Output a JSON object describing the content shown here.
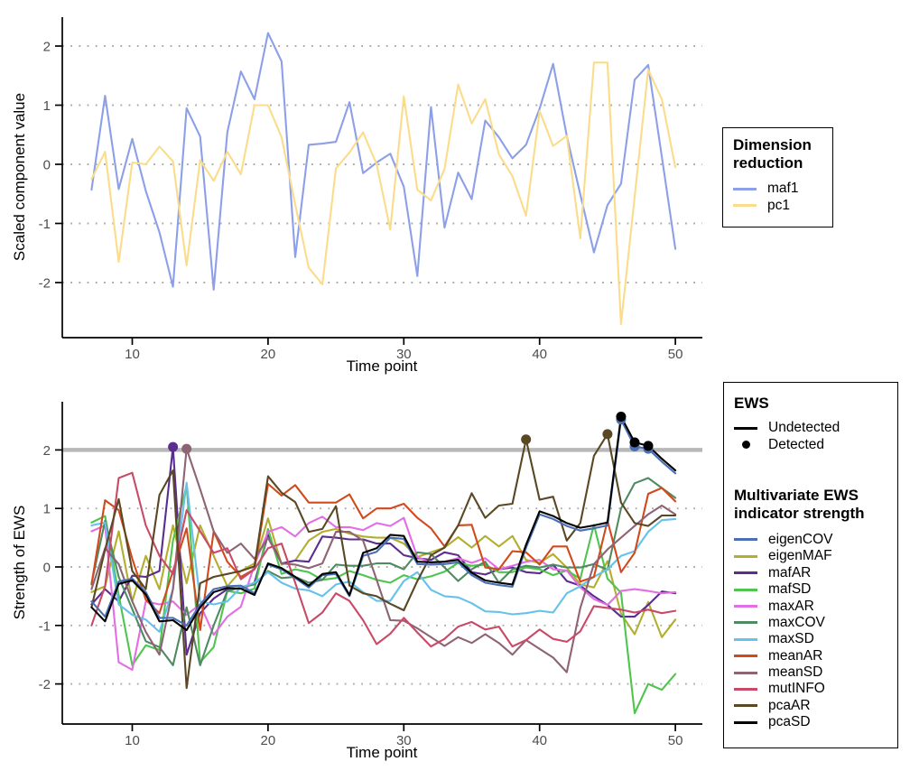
{
  "page": {
    "background": "#ffffff"
  },
  "axes": {
    "top_y_title": "Scaled component value",
    "bottom_y_title": "Strength of EWS",
    "x_title": "Time point"
  },
  "legend_dimension_reduction": {
    "title_lines": [
      "Dimension",
      "reduction"
    ],
    "items": [
      {
        "label": "maf1",
        "color": "#8c9fe8"
      },
      {
        "label": "pc1",
        "color": "#fbdc8a"
      }
    ]
  },
  "legend_ews": {
    "title": "EWS",
    "items": [
      {
        "label": "Undetected",
        "key": "line",
        "color": "#000000"
      },
      {
        "label": "Detected",
        "key": "dot",
        "color": "#000000"
      }
    ]
  },
  "legend_indicators": {
    "title_lines": [
      "Multivariate EWS",
      "indicator strength"
    ]
  },
  "chart_data": [
    {
      "id": "dimension-reduction",
      "type": "line",
      "title": "",
      "xlabel": "Time point",
      "ylabel": "Scaled component value",
      "x_start": 7,
      "x_ticks": [
        10,
        20,
        30,
        40,
        50
      ],
      "y_ticks": [
        -2,
        -1,
        0,
        1,
        2
      ],
      "ylim": [
        -2.9,
        2.45
      ],
      "grid": "dotted-horizontal",
      "legend_position": "right",
      "series": [
        {
          "name": "maf1",
          "color": "#8c9fe8",
          "values": [
            -0.43,
            1.16,
            -0.42,
            0.43,
            -0.45,
            -1.15,
            -2.07,
            0.95,
            0.47,
            -2.12,
            0.54,
            1.57,
            1.1,
            2.22,
            1.74,
            -1.57,
            0.33,
            0.35,
            0.38,
            1.05,
            -0.15,
            0.03,
            0.18,
            -0.38,
            -1.89,
            0.97,
            -1.07,
            -0.14,
            -0.59,
            0.74,
            0.46,
            0.1,
            0.33,
            0.94,
            1.7,
            0.48,
            -0.51,
            -1.49,
            -0.69,
            -0.33,
            1.43,
            1.68,
            0.13,
            -1.43
          ]
        },
        {
          "name": "pc1",
          "color": "#fbdc8a",
          "values": [
            -0.25,
            0.21,
            -1.65,
            0.03,
            0.0,
            0.3,
            0.05,
            -1.71,
            0.07,
            -0.28,
            0.21,
            -0.17,
            1.0,
            1.0,
            0.46,
            -0.68,
            -1.75,
            -2.03,
            -0.07,
            0.2,
            0.54,
            0.0,
            -1.1,
            1.15,
            -0.43,
            -0.61,
            -0.08,
            1.35,
            0.69,
            1.1,
            0.17,
            -0.2,
            -0.87,
            0.9,
            0.31,
            0.48,
            -1.25,
            1.72,
            1.72,
            -2.7,
            -0.55,
            1.6,
            1.1,
            -0.05
          ]
        }
      ]
    },
    {
      "id": "ews-strength",
      "type": "line",
      "title": "",
      "xlabel": "Time point",
      "ylabel": "Strength of EWS",
      "x_start": 7,
      "x_ticks": [
        10,
        20,
        30,
        40,
        50
      ],
      "y_ticks": [
        -2,
        -1,
        0,
        1,
        2
      ],
      "ylim": [
        -2.7,
        2.8
      ],
      "grid": "dotted-horizontal",
      "threshold": 2,
      "threshold_color": "#b8b8b8",
      "series": [
        {
          "name": "eigenCOV",
          "color": "#4a6fb5",
          "values": [
            -0.59,
            -0.85,
            -0.25,
            -0.2,
            -0.43,
            -0.87,
            -0.87,
            -1.0,
            -0.64,
            -0.38,
            -0.33,
            -0.32,
            -0.45,
            0.04,
            -0.04,
            -0.19,
            -0.35,
            -0.14,
            -0.12,
            -0.5,
            0.19,
            0.26,
            0.5,
            0.48,
            0.05,
            0.04,
            0.05,
            0.08,
            -0.14,
            -0.27,
            -0.31,
            -0.34,
            0.33,
            0.9,
            0.82,
            0.7,
            0.62,
            0.66,
            0.71,
            2.52,
            2.06,
            2.02,
            1.8,
            1.6
          ]
        },
        {
          "name": "eigenMAF",
          "color": "#b3ae2e",
          "values": [
            -0.43,
            -0.33,
            0.61,
            -0.59,
            0.19,
            -0.38,
            0.71,
            -0.28,
            0.71,
            0.19,
            -0.33,
            -0.07,
            0.06,
            0.83,
            0.04,
            0.11,
            0.45,
            0.6,
            0.65,
            0.57,
            0.52,
            0.5,
            0.5,
            0.4,
            0.17,
            0.25,
            0.33,
            0.51,
            0.33,
            0.53,
            0.35,
            0.53,
            0.12,
            0.07,
            0.22,
            -0.01,
            -0.3,
            -0.35,
            0.1,
            -0.8,
            -1.15,
            -0.6,
            -1.2,
            -0.9
          ]
        },
        {
          "name": "mafAR",
          "color": "#5b2d8e",
          "values": [
            -0.64,
            -0.38,
            -0.59,
            -0.15,
            -0.17,
            -0.07,
            2.05,
            -1.5,
            -0.79,
            -0.54,
            -0.38,
            -0.37,
            -0.27,
            0.55,
            0.06,
            0.11,
            0.09,
            0.52,
            0.5,
            0.47,
            0.47,
            0.4,
            0.4,
            0.2,
            0.15,
            0.12,
            0.25,
            0.2,
            -0.09,
            -0.13,
            -0.04,
            -0.01,
            -0.09,
            -0.11,
            0.04,
            -0.24,
            -0.32,
            -0.5,
            -0.65,
            -0.85,
            -0.85,
            -0.65,
            -0.42,
            -0.45
          ]
        },
        {
          "name": "mafSD",
          "color": "#4fc44f",
          "values": [
            0.76,
            0.87,
            -0.48,
            -1.68,
            -1.34,
            -1.42,
            0.45,
            1.39,
            -1.63,
            -1.37,
            -0.41,
            -0.45,
            -0.37,
            0.65,
            -0.12,
            -0.04,
            -0.09,
            -0.22,
            -0.19,
            -0.07,
            -0.14,
            -0.22,
            -0.27,
            -0.14,
            -0.21,
            -0.16,
            -0.08,
            0.07,
            0.02,
            0.04,
            -0.09,
            -0.09,
            -0.01,
            -0.04,
            -0.14,
            -0.06,
            -0.2,
            0.72,
            -0.2,
            -0.44,
            -2.5,
            -2.0,
            -2.1,
            -1.83
          ]
        },
        {
          "name": "maxAR",
          "color": "#e36ee3",
          "values": [
            0.61,
            0.71,
            -1.63,
            -1.76,
            -0.59,
            -0.64,
            -0.59,
            -0.82,
            -0.64,
            -1.16,
            -0.85,
            -0.68,
            0.04,
            0.6,
            0.68,
            0.52,
            0.75,
            0.86,
            0.68,
            0.68,
            0.63,
            0.75,
            0.7,
            0.84,
            0.17,
            0.07,
            0.09,
            0.15,
            0.07,
            0.15,
            -0.04,
            0.02,
            0.09,
            0.12,
            -0.04,
            -0.06,
            -0.35,
            -0.55,
            -0.65,
            -0.41,
            -0.38,
            -0.41,
            -0.45,
            -0.43
          ]
        },
        {
          "name": "maxCOV",
          "color": "#4f8a63",
          "values": [
            -0.28,
            0.79,
            -0.17,
            -0.72,
            -1.27,
            -1.37,
            -1.68,
            -0.69,
            -1.68,
            -1.0,
            -0.41,
            -0.35,
            -0.3,
            -0.07,
            -0.19,
            -0.17,
            -0.27,
            -0.22,
            0.04,
            0.02,
            0.02,
            0.06,
            0.06,
            -0.04,
            0.25,
            0.22,
            -0.01,
            -0.24,
            -0.04,
            0.09,
            -0.27,
            -0.04,
            0.02,
            -0.01,
            0.04,
            -0.01,
            -0.01,
            0.05,
            -0.05,
            1.0,
            1.43,
            1.52,
            1.35,
            1.18
          ]
        },
        {
          "name": "maxSD",
          "color": "#66c2eb",
          "values": [
            0.71,
            0.76,
            -0.64,
            -0.82,
            -0.9,
            -1.11,
            -0.38,
            1.44,
            -0.59,
            -0.64,
            -0.59,
            -0.35,
            -0.27,
            -0.09,
            -0.27,
            -0.37,
            -0.4,
            -0.5,
            -0.3,
            -0.25,
            -0.43,
            -0.58,
            -0.58,
            -0.24,
            -0.09,
            -0.39,
            -0.5,
            -0.52,
            -0.62,
            -0.76,
            -0.77,
            -0.81,
            -0.79,
            -0.75,
            -0.78,
            -0.45,
            -0.33,
            -0.17,
            -0.04,
            0.19,
            0.27,
            0.6,
            0.8,
            0.82
          ]
        },
        {
          "name": "meanAR",
          "color": "#d14a1e",
          "values": [
            -0.3,
            1.14,
            0.97,
            0.14,
            -0.56,
            -0.79,
            -0.07,
            0.66,
            -1.08,
            0.61,
            0.09,
            -0.17,
            -0.04,
            1.42,
            1.22,
            1.4,
            1.1,
            1.1,
            1.1,
            1.24,
            0.83,
            1.0,
            1.0,
            1.08,
            0.84,
            0.66,
            0.35,
            0.71,
            0.72,
            -0.01,
            -0.04,
            0.27,
            0.25,
            0.04,
            0.35,
            0.35,
            -0.25,
            -0.17,
            0.79,
            -0.09,
            0.24,
            1.25,
            1.35,
            1.12
          ]
        },
        {
          "name": "meanSD",
          "color": "#8e6373",
          "values": [
            -0.38,
            0.32,
            0.05,
            -0.59,
            -1.11,
            -1.5,
            -0.38,
            2.02,
            1.33,
            0.61,
            0.24,
            0.4,
            0.14,
            0.5,
            0.06,
            0.04,
            -0.02,
            0.06,
            0.6,
            0.6,
            0.45,
            -0.22,
            -0.91,
            -0.92,
            -1.05,
            -1.2,
            -1.35,
            -1.2,
            -1.3,
            -1.15,
            -1.3,
            -1.5,
            -1.25,
            -1.4,
            -1.55,
            -1.8,
            -0.7,
            0.05,
            0.3,
            0.5,
            0.7,
            0.9,
            1.05,
            0.9
          ]
        },
        {
          "name": "mutINFO",
          "color": "#c94a66",
          "values": [
            -1.0,
            -0.33,
            1.52,
            1.61,
            0.71,
            0.19,
            -0.12,
            0.97,
            0.61,
            0.24,
            0.32,
            -0.21,
            -0.04,
            0.32,
            0.4,
            -0.27,
            -0.96,
            -0.78,
            -0.45,
            -0.58,
            -0.91,
            -1.32,
            -1.14,
            -0.87,
            -1.12,
            -1.36,
            -1.23,
            -1.02,
            -0.94,
            -1.07,
            -1.02,
            -1.36,
            -1.25,
            -1.07,
            -1.23,
            -1.28,
            -1.1,
            -0.67,
            -0.7,
            -0.73,
            -0.78,
            -0.73,
            -0.79,
            -0.75
          ]
        },
        {
          "name": "pcaAR",
          "color": "#5a4723",
          "values": [
            -0.69,
            0.3,
            1.16,
            -0.07,
            -0.38,
            1.23,
            1.65,
            -2.07,
            -0.28,
            -0.17,
            -0.12,
            -0.07,
            0.01,
            1.55,
            1.27,
            1.11,
            0.6,
            0.65,
            1.04,
            -0.32,
            -0.45,
            -0.5,
            -0.63,
            -0.74,
            -0.24,
            0.2,
            0.33,
            0.71,
            1.26,
            0.84,
            1.05,
            1.08,
            2.18,
            1.15,
            1.2,
            0.45,
            0.75,
            1.9,
            2.27,
            1.1,
            0.75,
            0.7,
            0.88,
            0.88
          ]
        },
        {
          "name": "pcaSD",
          "color": "#000000",
          "values": [
            -0.69,
            -0.93,
            -0.29,
            -0.23,
            -0.47,
            -0.93,
            -0.91,
            -1.08,
            -0.69,
            -0.43,
            -0.36,
            -0.37,
            -0.48,
            0.06,
            -0.02,
            -0.17,
            -0.32,
            -0.12,
            -0.09,
            -0.48,
            0.24,
            0.32,
            0.55,
            0.53,
            0.09,
            0.08,
            0.09,
            0.12,
            -0.1,
            -0.23,
            -0.27,
            -0.3,
            0.38,
            0.95,
            0.87,
            0.75,
            0.67,
            0.71,
            0.76,
            2.57,
            2.13,
            2.07,
            1.85,
            1.65
          ]
        }
      ],
      "detected_points": [
        {
          "series": "mafAR",
          "t": 13
        },
        {
          "series": "meanSD",
          "t": 14
        },
        {
          "series": "pcaAR",
          "t": 39
        },
        {
          "series": "pcaAR",
          "t": 45
        },
        {
          "series": "eigenCOV",
          "t": 46
        },
        {
          "series": "eigenCOV",
          "t": 47
        },
        {
          "series": "eigenCOV",
          "t": 48
        },
        {
          "series": "pcaSD",
          "t": 46
        },
        {
          "series": "pcaSD",
          "t": 47
        },
        {
          "series": "pcaSD",
          "t": 48
        }
      ]
    }
  ]
}
